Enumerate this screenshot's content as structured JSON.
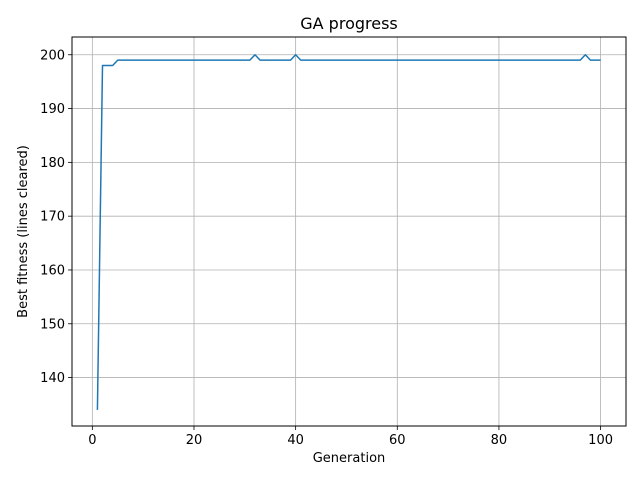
{
  "chart_data": {
    "type": "line",
    "title": "GA progress",
    "xlabel": "Generation",
    "ylabel": "Best fitness (lines cleared)",
    "xlim": [
      -4,
      105
    ],
    "ylim": [
      131,
      203.3
    ],
    "xticks": [
      0,
      20,
      40,
      60,
      80,
      100
    ],
    "yticks": [
      140,
      150,
      160,
      170,
      180,
      190,
      200
    ],
    "grid": true,
    "line_color": "#1f77b4",
    "series": [
      {
        "x": [
          1,
          2,
          3,
          4,
          5,
          6,
          7,
          8,
          9,
          10,
          11,
          12,
          13,
          14,
          15,
          16,
          17,
          18,
          19,
          20,
          21,
          22,
          23,
          24,
          25,
          26,
          27,
          28,
          29,
          30,
          31,
          32,
          33,
          34,
          35,
          36,
          37,
          38,
          39,
          40,
          41,
          42,
          43,
          44,
          45,
          46,
          47,
          48,
          49,
          50,
          51,
          52,
          53,
          54,
          55,
          56,
          57,
          58,
          59,
          60,
          61,
          62,
          63,
          64,
          65,
          66,
          67,
          68,
          69,
          70,
          71,
          72,
          73,
          74,
          75,
          76,
          77,
          78,
          79,
          80,
          81,
          82,
          83,
          84,
          85,
          86,
          87,
          88,
          89,
          90,
          91,
          92,
          93,
          94,
          95,
          96,
          97,
          98,
          99,
          100
        ],
        "values": [
          134,
          198,
          198,
          198,
          199,
          199,
          199,
          199,
          199,
          199,
          199,
          199,
          199,
          199,
          199,
          199,
          199,
          199,
          199,
          199,
          199,
          199,
          199,
          199,
          199,
          199,
          199,
          199,
          199,
          199,
          199,
          200,
          199,
          199,
          199,
          199,
          199,
          199,
          199,
          200,
          199,
          199,
          199,
          199,
          199,
          199,
          199,
          199,
          199,
          199,
          199,
          199,
          199,
          199,
          199,
          199,
          199,
          199,
          199,
          199,
          199,
          199,
          199,
          199,
          199,
          199,
          199,
          199,
          199,
          199,
          199,
          199,
          199,
          199,
          199,
          199,
          199,
          199,
          199,
          199,
          199,
          199,
          199,
          199,
          199,
          199,
          199,
          199,
          199,
          199,
          199,
          199,
          199,
          199,
          199,
          199,
          200,
          199,
          199,
          199
        ]
      }
    ]
  }
}
